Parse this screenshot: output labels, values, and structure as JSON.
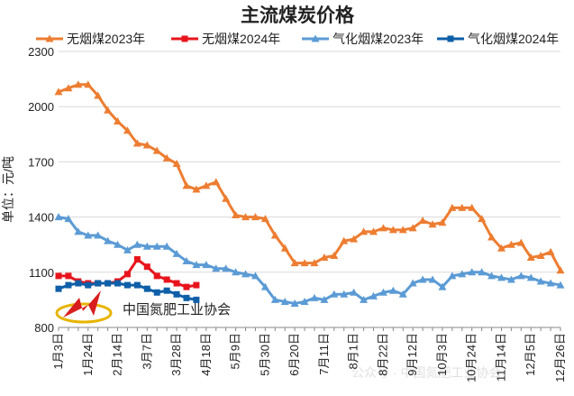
{
  "chart_data": {
    "type": "line",
    "title": "主流煤炭价格",
    "y_label": "单位：元/吨",
    "annotations": [
      "中国氮肥工业协会",
      "公众号 · 中国氮肥工业协会"
    ],
    "categories": [
      "1月3日",
      null,
      null,
      "1月24日",
      null,
      null,
      "2月14日",
      null,
      null,
      "3月7日",
      null,
      null,
      "3月28日",
      null,
      null,
      "4月18日",
      null,
      null,
      "5月9日",
      null,
      null,
      "5月30日",
      null,
      null,
      "6月20日",
      null,
      null,
      "7月11日",
      null,
      null,
      "8月1日",
      null,
      null,
      "8月22日",
      null,
      null,
      "9月12日",
      null,
      null,
      "10月3日",
      null,
      null,
      "10月24日",
      null,
      null,
      "11月14日",
      null,
      null,
      "12月5日",
      null,
      null,
      "12月26日"
    ],
    "series": [
      {
        "name": "无烟煤2023年",
        "color": "#ed7d31",
        "marker": "triangle",
        "values": [
          2080,
          2100,
          2120,
          2120,
          2060,
          1980,
          1920,
          1870,
          1800,
          1790,
          1760,
          1720,
          1690,
          1570,
          1550,
          1570,
          1590,
          1500,
          1410,
          1400,
          1400,
          1390,
          1300,
          1230,
          1150,
          1150,
          1150,
          1180,
          1190,
          1270,
          1280,
          1320,
          1320,
          1340,
          1330,
          1330,
          1340,
          1380,
          1360,
          1370,
          1450,
          1450,
          1450,
          1390,
          1290,
          1230,
          1250,
          1260,
          1180,
          1190,
          1210,
          1110
        ]
      },
      {
        "name": "无烟煤2024年",
        "color": "#e8141c",
        "marker": "square",
        "values": [
          1080,
          1080,
          1050,
          1040,
          1040,
          1040,
          1050,
          1090,
          1170,
          1130,
          1080,
          1060,
          1040,
          1020,
          1030,
          null,
          null,
          null,
          null,
          null,
          null,
          null,
          null,
          null,
          null,
          null,
          null,
          null,
          null,
          null,
          null,
          null,
          null,
          null,
          null,
          null,
          null,
          null,
          null,
          null,
          null,
          null,
          null,
          null,
          null,
          null,
          null,
          null,
          null,
          null,
          null,
          null
        ]
      },
      {
        "name": "气化烟煤2023年",
        "color": "#5b9bd5",
        "marker": "triangle",
        "values": [
          1400,
          1390,
          1320,
          1300,
          1300,
          1270,
          1250,
          1220,
          1250,
          1240,
          1240,
          1240,
          1200,
          1160,
          1140,
          1140,
          1120,
          1120,
          1100,
          1090,
          1080,
          1020,
          950,
          940,
          930,
          940,
          960,
          950,
          980,
          980,
          990,
          950,
          970,
          990,
          1000,
          980,
          1040,
          1060,
          1060,
          1020,
          1080,
          1090,
          1100,
          1100,
          1080,
          1070,
          1060,
          1080,
          1070,
          1050,
          1040,
          1030
        ]
      },
      {
        "name": "气化烟煤2024年",
        "color": "#0e5fa8",
        "marker": "square",
        "values": [
          1010,
          1030,
          1040,
          1030,
          1040,
          1040,
          1040,
          1030,
          1030,
          1010,
          990,
          1000,
          980,
          960,
          950,
          null,
          null,
          null,
          null,
          null,
          null,
          null,
          null,
          null,
          null,
          null,
          null,
          null,
          null,
          null,
          null,
          null,
          null,
          null,
          null,
          null,
          null,
          null,
          null,
          null,
          null,
          null,
          null,
          null,
          null,
          null,
          null,
          null,
          null,
          null,
          null,
          null
        ]
      }
    ],
    "ylim": [
      800,
      2300
    ],
    "yticks": [
      800,
      1100,
      1400,
      1700,
      2000,
      2300
    ],
    "grid": true,
    "legend": "top"
  }
}
